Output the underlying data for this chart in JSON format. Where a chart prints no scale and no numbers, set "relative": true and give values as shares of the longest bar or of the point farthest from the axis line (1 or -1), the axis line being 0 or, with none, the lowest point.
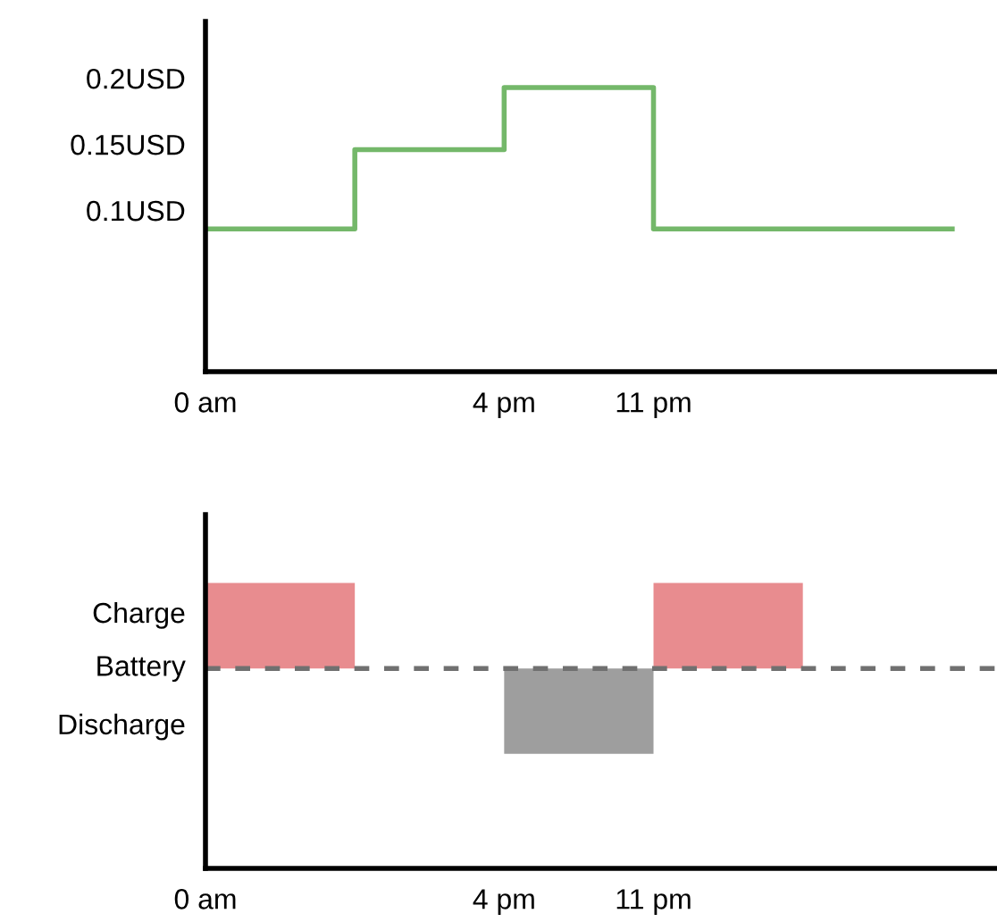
{
  "chart_data": [
    {
      "type": "step",
      "categories": [
        "0 am",
        null,
        "4 pm",
        "11 pm",
        null,
        null
      ],
      "series": [
        {
          "color": "#74b86a",
          "values": [
            0.086,
            0.146,
            0.193,
            0.086,
            0.086,
            0.086
          ]
        }
      ],
      "ylim": [
        -0.022,
        0.243
      ],
      "yticks": [
        {
          "value": 0.1,
          "label": "0.1USD"
        },
        {
          "value": 0.15,
          "label": "0.15USD"
        },
        {
          "value": 0.2,
          "label": "0.2USD"
        }
      ],
      "grid": false,
      "legend": false
    },
    {
      "type": "area",
      "relative": true,
      "categories": [
        "0 am",
        null,
        "4 pm",
        "11 pm",
        null,
        null
      ],
      "series": [
        {
          "color": "#e88c8f",
          "values": [
            1,
            0,
            0,
            1,
            0,
            0
          ]
        },
        {
          "color": "#9e9e9e",
          "values": [
            0,
            0,
            -1,
            0,
            0,
            0
          ]
        }
      ],
      "ref_lines": [
        {
          "axis": "y",
          "value": 0,
          "label": "Battery",
          "color": "#707070",
          "line_style": "dashed"
        }
      ],
      "annotations": [
        "Charge",
        "Discharge"
      ],
      "grid": false,
      "legend": false
    }
  ]
}
